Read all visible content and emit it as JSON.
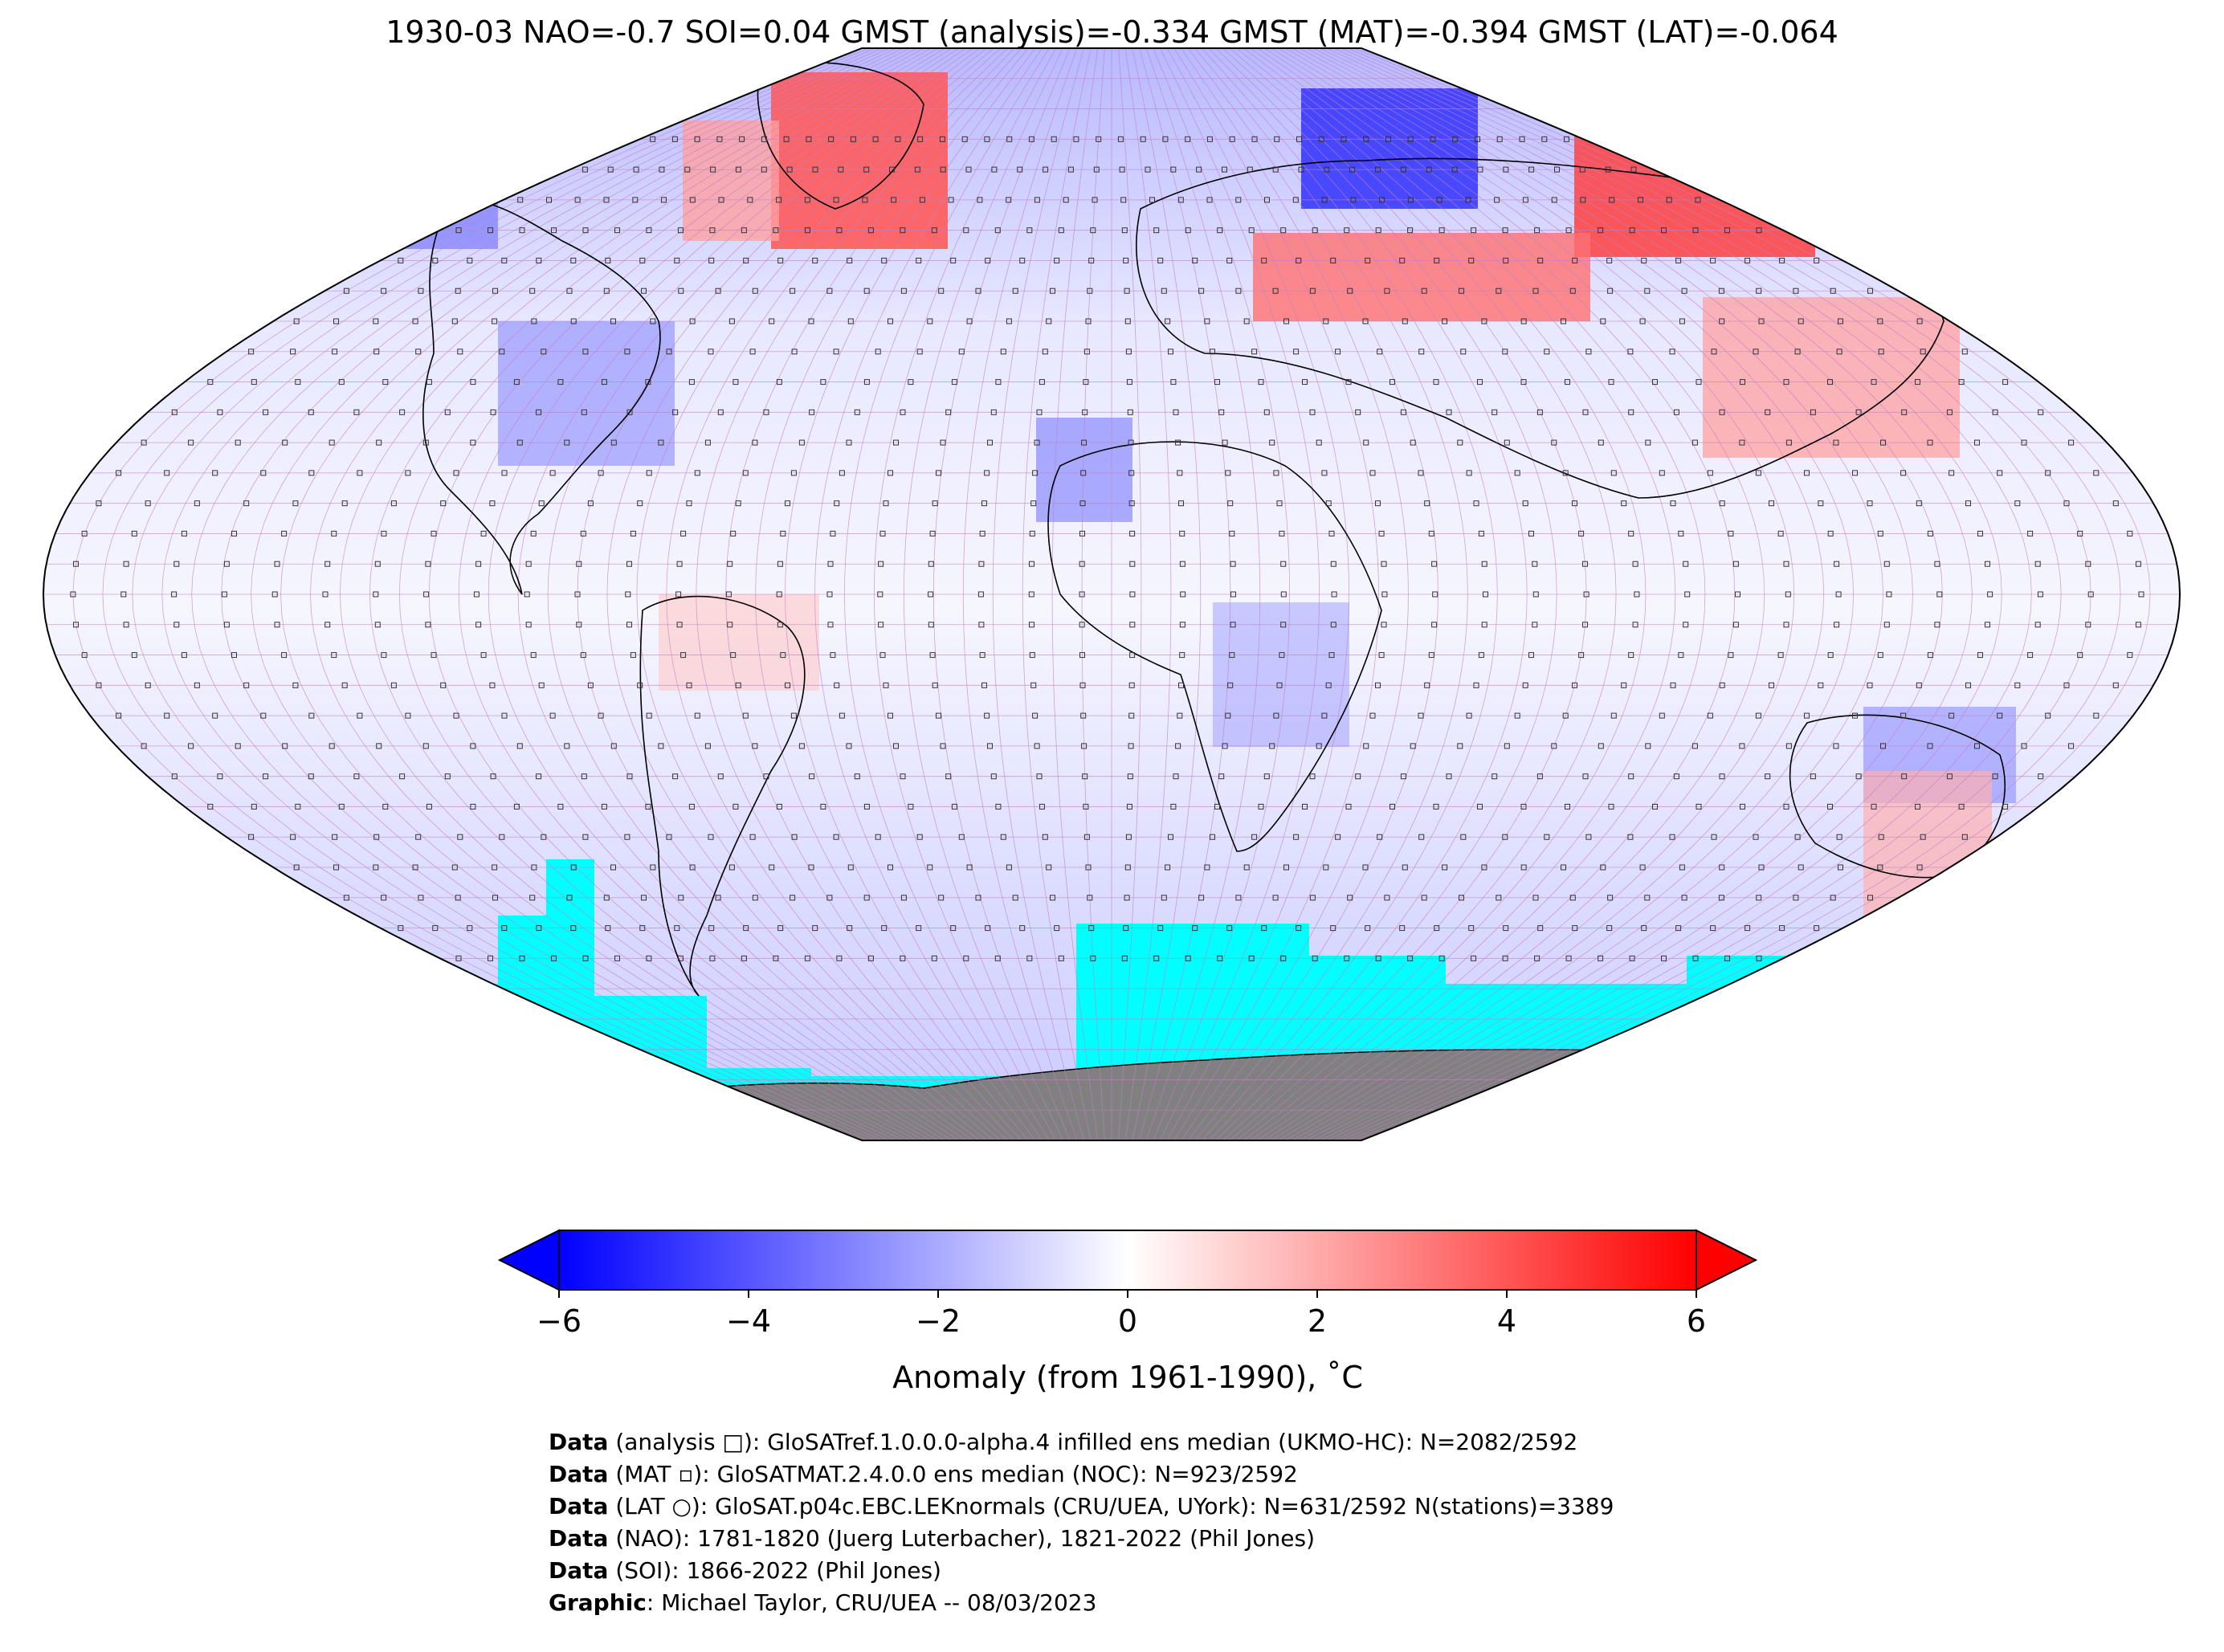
{
  "title": "1930-03 NAO=-0.7 SOI=0.04 GMST (analysis)=-0.334 GMST (MAT)=-0.394 GMST (LAT)=-0.064",
  "colors": {
    "cold": "#0000ff",
    "neutral": "#ffffff",
    "warm": "#ff0000",
    "sea_ice": "#00ffff",
    "antarctica": "#808080",
    "grid": "#c080c0"
  },
  "map": {
    "projection": "Robinson",
    "gridlines": true
  },
  "colorbar": {
    "ticks": [
      "−6",
      "−4",
      "−2",
      "0",
      "2",
      "4",
      "6"
    ],
    "tick_values": [
      -6,
      -4,
      -2,
      0,
      2,
      4,
      6
    ],
    "range": [
      -6,
      6
    ],
    "label": "Anomaly (from 1961-1990), ˚C",
    "extend": "both"
  },
  "credits": [
    {
      "bold": "Data",
      "text": " (analysis □): GloSATref.1.0.0.0-alpha.4 infilled ens median (UKMO-HC): N=2082/2592"
    },
    {
      "bold": "Data",
      "text": " (MAT ▫): GloSATMAT.2.4.0.0 ens median (NOC): N=923/2592"
    },
    {
      "bold": "Data",
      "text": " (LAT ○): GloSAT.p04c.EBC.LEKnormals (CRU/UEA, UYork): N=631/2592 N(stations)=3389"
    },
    {
      "bold": "Data",
      "text": " (NAO): 1781-1820 (Juerg Luterbacher), 1821-2022 (Phil Jones)"
    },
    {
      "bold": "Data",
      "text": " (SOI): 1866-2022 (Phil Jones)"
    },
    {
      "bold": "Graphic",
      "text": ": Michael Taylor, CRU/UEA -- 08/03/2023"
    }
  ]
}
